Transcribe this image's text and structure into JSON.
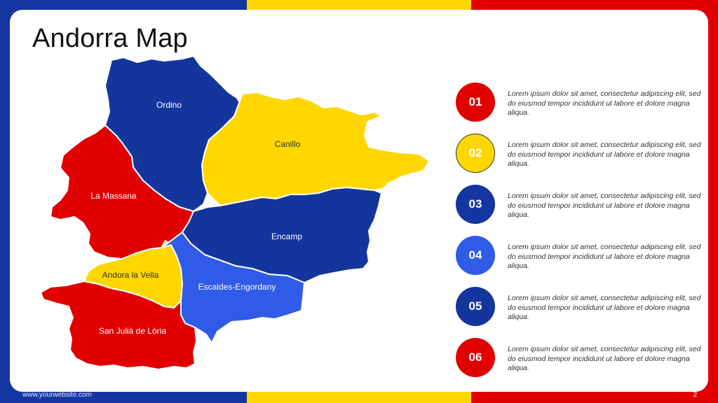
{
  "slide": {
    "title": "Andorra Map",
    "footer_url": "www.yourwebsite.com",
    "page_number": "2"
  },
  "colors": {
    "blue": "#1536A0",
    "navy": "#14359C",
    "light_blue": "#2F5BE6",
    "yellow": "#FFD700",
    "red": "#E00000"
  },
  "map": {
    "regions": [
      {
        "name": "Ordino",
        "fill": "#14359C",
        "text_color": "#ffffff"
      },
      {
        "name": "Canillo",
        "fill": "#FFD700",
        "text_color": "#333333"
      },
      {
        "name": "La Massana",
        "fill": "#E00000",
        "text_color": "#ffffff"
      },
      {
        "name": "Encamp",
        "fill": "#14359C",
        "text_color": "#ffffff"
      },
      {
        "name": "Andora la Vella",
        "fill": "#FFD700",
        "text_color": "#333333"
      },
      {
        "name": "Escaldes-Engordany",
        "fill": "#2F5BE6",
        "text_color": "#ffffff"
      },
      {
        "name": "San Julià de Lòria",
        "fill": "#E00000",
        "text_color": "#ffffff"
      }
    ]
  },
  "items": [
    {
      "number": "01",
      "color": "#E00000",
      "text": "Lorem ipsum dolor sit amet, consectetur adipiscing elit, sed do eiusmod tempor incididunt ut labore et dolore magna aliqua."
    },
    {
      "number": "02",
      "color": "#FFD700",
      "text": "Lorem ipsum dolor sit amet, consectetur adipiscing elit, sed do eiusmod tempor incididunt ut labore et dolore magna aliqua."
    },
    {
      "number": "03",
      "color": "#1536A0",
      "text": "Lorem ipsum dolor sit amet, consectetur adipiscing elit, sed do eiusmod tempor incididunt ut labore et dolore magna aliqua."
    },
    {
      "number": "04",
      "color": "#2F5BE6",
      "text": "Lorem ipsum dolor sit amet, consectetur adipiscing elit, sed do eiusmod tempor incididunt ut labore et dolore magna aliqua."
    },
    {
      "number": "05",
      "color": "#14359C",
      "text": "Lorem ipsum dolor sit amet, consectetur adipiscing elit, sed do eiusmod tempor incididunt ut labore et dolore magna aliqua."
    },
    {
      "number": "06",
      "color": "#E00000",
      "text": "Lorem ipsum dolor sit amet, consectetur adipiscing elit, sed do eiusmod tempor incididunt ut labore et dolore magna aliqua."
    }
  ]
}
